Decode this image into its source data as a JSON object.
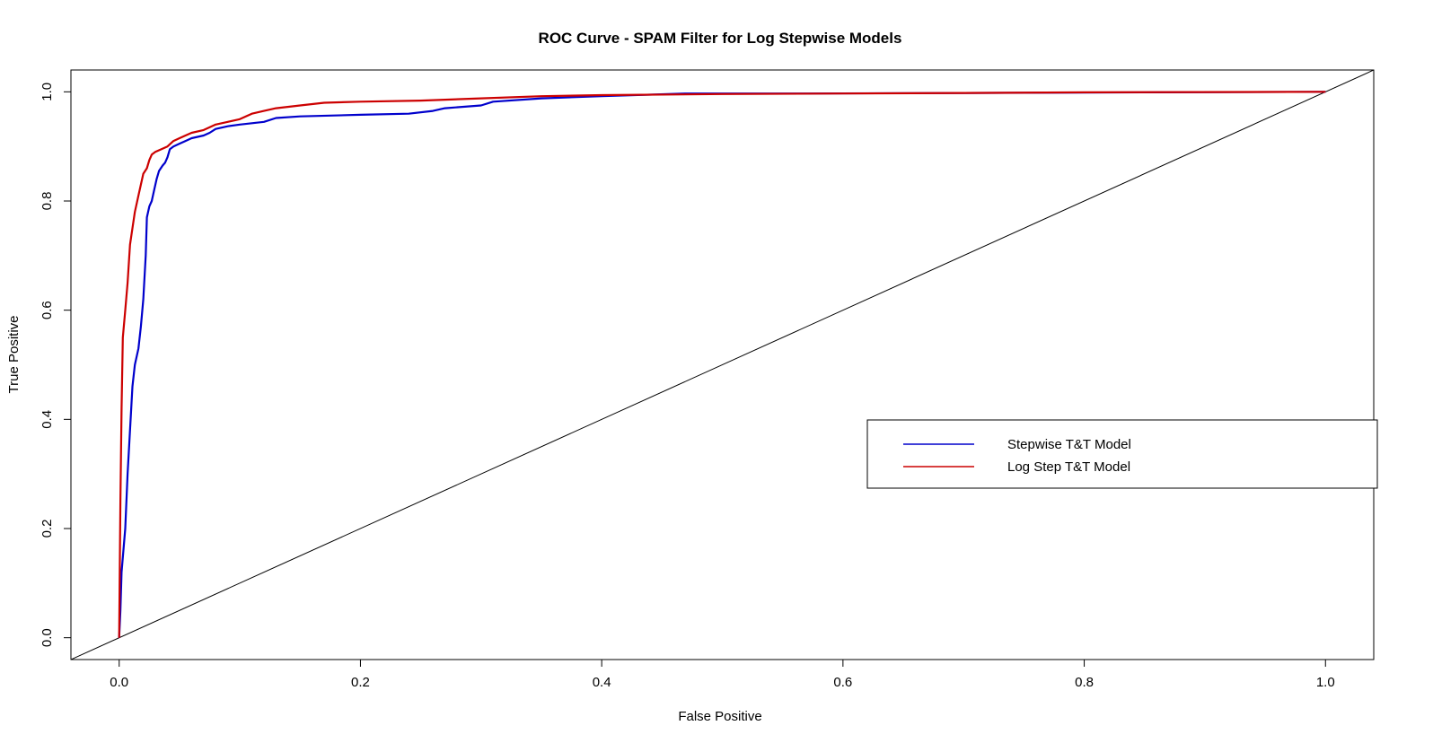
{
  "chart_data": {
    "type": "line",
    "title": "ROC Curve - SPAM Filter for Log Stepwise Models",
    "xlabel": "False Positive",
    "ylabel": "True Positive",
    "xlim": [
      -0.04,
      1.04
    ],
    "ylim": [
      -0.04,
      1.04
    ],
    "x_ticks": [
      0.0,
      0.2,
      0.4,
      0.6,
      0.8,
      1.0
    ],
    "x_tick_labels": [
      "0.0",
      "0.2",
      "0.4",
      "0.6",
      "0.8",
      "1.0"
    ],
    "y_ticks": [
      0.0,
      0.2,
      0.4,
      0.6,
      0.8,
      1.0
    ],
    "y_tick_labels": [
      "0.0",
      "0.2",
      "0.4",
      "0.6",
      "0.8",
      "1.0"
    ],
    "grid": false,
    "legend_position": "right, middle",
    "reference_line": {
      "description": "diagonal",
      "color": "#000000",
      "slope": 1,
      "intercept": 0
    },
    "series": [
      {
        "name": "Stepwise T&T Model",
        "color": "#0000CC",
        "points": [
          [
            0.0,
            0.0
          ],
          [
            0.001,
            0.05
          ],
          [
            0.002,
            0.12
          ],
          [
            0.005,
            0.2
          ],
          [
            0.007,
            0.3
          ],
          [
            0.009,
            0.38
          ],
          [
            0.011,
            0.46
          ],
          [
            0.013,
            0.5
          ],
          [
            0.016,
            0.53
          ],
          [
            0.018,
            0.57
          ],
          [
            0.02,
            0.62
          ],
          [
            0.022,
            0.7
          ],
          [
            0.023,
            0.77
          ],
          [
            0.025,
            0.79
          ],
          [
            0.027,
            0.8
          ],
          [
            0.029,
            0.82
          ],
          [
            0.031,
            0.84
          ],
          [
            0.033,
            0.855
          ],
          [
            0.036,
            0.865
          ],
          [
            0.038,
            0.87
          ],
          [
            0.04,
            0.88
          ],
          [
            0.042,
            0.895
          ],
          [
            0.045,
            0.9
          ],
          [
            0.05,
            0.905
          ],
          [
            0.055,
            0.91
          ],
          [
            0.06,
            0.915
          ],
          [
            0.07,
            0.92
          ],
          [
            0.075,
            0.925
          ],
          [
            0.08,
            0.932
          ],
          [
            0.09,
            0.937
          ],
          [
            0.1,
            0.94
          ],
          [
            0.12,
            0.945
          ],
          [
            0.13,
            0.952
          ],
          [
            0.15,
            0.955
          ],
          [
            0.2,
            0.958
          ],
          [
            0.24,
            0.96
          ],
          [
            0.26,
            0.965
          ],
          [
            0.27,
            0.97
          ],
          [
            0.3,
            0.975
          ],
          [
            0.31,
            0.982
          ],
          [
            0.35,
            0.988
          ],
          [
            0.4,
            0.992
          ],
          [
            0.47,
            0.997
          ],
          [
            0.57,
            0.997
          ],
          [
            0.7,
            0.998
          ],
          [
            0.86,
            0.999
          ],
          [
            1.0,
            1.0
          ]
        ]
      },
      {
        "name": "Log Step T&T Model",
        "color": "#CC0000",
        "points": [
          [
            0.0,
            0.0
          ],
          [
            0.001,
            0.25
          ],
          [
            0.002,
            0.42
          ],
          [
            0.003,
            0.55
          ],
          [
            0.005,
            0.6
          ],
          [
            0.007,
            0.65
          ],
          [
            0.009,
            0.72
          ],
          [
            0.011,
            0.75
          ],
          [
            0.013,
            0.78
          ],
          [
            0.016,
            0.81
          ],
          [
            0.018,
            0.83
          ],
          [
            0.02,
            0.85
          ],
          [
            0.023,
            0.86
          ],
          [
            0.025,
            0.875
          ],
          [
            0.027,
            0.885
          ],
          [
            0.03,
            0.89
          ],
          [
            0.035,
            0.895
          ],
          [
            0.04,
            0.9
          ],
          [
            0.045,
            0.91
          ],
          [
            0.05,
            0.915
          ],
          [
            0.055,
            0.92
          ],
          [
            0.06,
            0.925
          ],
          [
            0.07,
            0.93
          ],
          [
            0.08,
            0.94
          ],
          [
            0.09,
            0.945
          ],
          [
            0.1,
            0.95
          ],
          [
            0.11,
            0.96
          ],
          [
            0.12,
            0.965
          ],
          [
            0.13,
            0.97
          ],
          [
            0.15,
            0.975
          ],
          [
            0.17,
            0.98
          ],
          [
            0.2,
            0.982
          ],
          [
            0.25,
            0.984
          ],
          [
            0.3,
            0.988
          ],
          [
            0.35,
            0.992
          ],
          [
            0.4,
            0.994
          ],
          [
            0.5,
            0.996
          ],
          [
            0.6,
            0.997
          ],
          [
            0.7,
            0.998
          ],
          [
            0.8,
            0.999
          ],
          [
            1.0,
            1.0
          ]
        ]
      }
    ]
  }
}
